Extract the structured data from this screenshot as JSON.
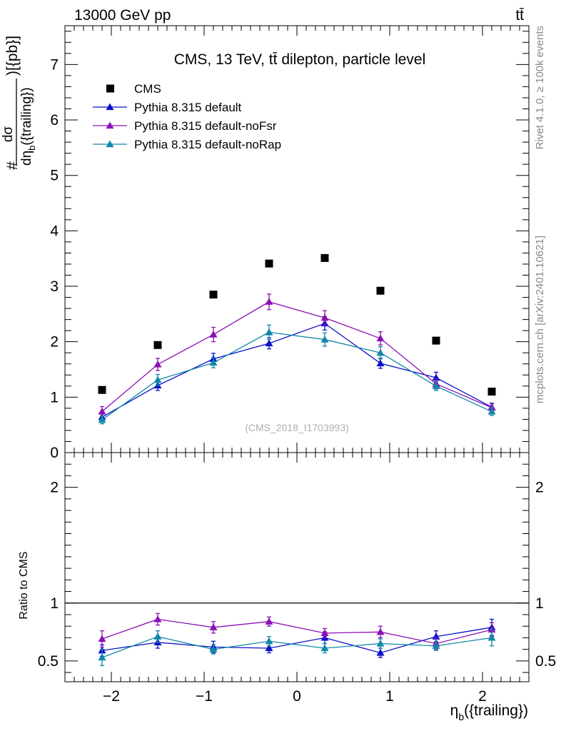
{
  "header": {
    "left": "13000 GeV pp",
    "right": "tt̄"
  },
  "side": {
    "rivet": "Rivet 4.1.0, ≥ 100k events",
    "mcplots": "mcplots.cern.ch [arXiv:2401.10621]"
  },
  "chart_data": [
    {
      "type": "scatter",
      "panel": "main",
      "title": "CMS, 13 TeV, tt̄ dilepton, particle level",
      "watermark": "(CMS_2018_I1703993)",
      "ylabel_prefix": "#",
      "ylabel_num": "dσ",
      "ylabel_den_main": "dη",
      "ylabel_den_sub": "b",
      "ylabel_den_rest": "({trailing})",
      "ylabel_unit": ")[{pb}]",
      "xlim": [
        -2.5,
        2.5
      ],
      "ylim": [
        0,
        7.7
      ],
      "yticks": [
        0,
        1,
        2,
        3,
        4,
        5,
        6,
        7
      ],
      "ytick_labels": [
        "0",
        "1",
        "2",
        "3",
        "4",
        "5",
        "6",
        "7"
      ],
      "x": [
        -2.1,
        -1.5,
        -0.9,
        -0.3,
        0.3,
        0.9,
        1.5,
        2.1
      ],
      "legend": [
        "CMS",
        "Pythia 8.315 default",
        "Pythia 8.315 default-noFsr",
        "Pythia 8.315 default-noRap"
      ],
      "legend_position": "top-left",
      "series": [
        {
          "name": "CMS",
          "color": "#000000",
          "marker": "square",
          "values": [
            1.13,
            1.94,
            2.85,
            3.41,
            3.51,
            2.92,
            2.02,
            1.1
          ]
        },
        {
          "name": "Pythia 8.315 default",
          "color": "#0a10c8",
          "marker": "triangle",
          "values": [
            0.64,
            1.21,
            1.69,
            1.97,
            2.33,
            1.61,
            1.35,
            0.82
          ],
          "errors": [
            0.08,
            0.09,
            0.1,
            0.1,
            0.12,
            0.09,
            0.1,
            0.07
          ]
        },
        {
          "name": "Pythia 8.315 default-noFsr",
          "color": "#8c10b8",
          "marker": "triangle",
          "values": [
            0.74,
            1.59,
            2.13,
            2.72,
            2.43,
            2.06,
            1.24,
            0.81
          ],
          "errors": [
            0.09,
            0.11,
            0.13,
            0.14,
            0.13,
            0.12,
            0.09,
            0.07
          ]
        },
        {
          "name": "Pythia 8.315 default-noRap",
          "color": "#1088a8",
          "marker": "triangle",
          "values": [
            0.59,
            1.31,
            1.62,
            2.17,
            2.04,
            1.8,
            1.2,
            0.74
          ],
          "errors": [
            0.07,
            0.1,
            0.09,
            0.13,
            0.12,
            0.11,
            0.08,
            0.07
          ]
        }
      ]
    },
    {
      "type": "scatter",
      "panel": "ratio",
      "ylabel": "Ratio to CMS",
      "xlabel_main": "η",
      "xlabel_sub": "b",
      "xlabel_rest": "({trailing})",
      "xlim": [
        -2.5,
        2.5
      ],
      "ylim": [
        0.32,
        2.3
      ],
      "reference_line": 1,
      "yticks": [
        0.5,
        1,
        2
      ],
      "ytick_labels": [
        "0.5",
        "1",
        "2"
      ],
      "xticks": [
        -2,
        -1,
        0,
        1,
        2
      ],
      "xtick_labels": [
        "−2",
        "−1",
        "0",
        "1",
        "2"
      ],
      "x": [
        -2.1,
        -1.5,
        -0.9,
        -0.3,
        0.3,
        0.9,
        1.5,
        2.1
      ],
      "series": [
        {
          "name": "Pythia 8.315 default",
          "color": "#0a10c8",
          "values": [
            0.59,
            0.66,
            0.62,
            0.61,
            0.7,
            0.57,
            0.71,
            0.79
          ],
          "errors": [
            0.05,
            0.05,
            0.05,
            0.04,
            0.05,
            0.04,
            0.05,
            0.07
          ]
        },
        {
          "name": "Pythia 8.315 default-noFsr",
          "color": "#8c10b8",
          "values": [
            0.69,
            0.86,
            0.79,
            0.84,
            0.74,
            0.75,
            0.65,
            0.77
          ],
          "errors": [
            0.07,
            0.05,
            0.05,
            0.04,
            0.04,
            0.05,
            0.05,
            0.06
          ]
        },
        {
          "name": "Pythia 8.315 default-noRap",
          "color": "#1088a8",
          "values": [
            0.53,
            0.71,
            0.6,
            0.67,
            0.61,
            0.65,
            0.63,
            0.7
          ],
          "errors": [
            0.07,
            0.05,
            0.04,
            0.04,
            0.04,
            0.04,
            0.04,
            0.07
          ]
        }
      ]
    }
  ]
}
